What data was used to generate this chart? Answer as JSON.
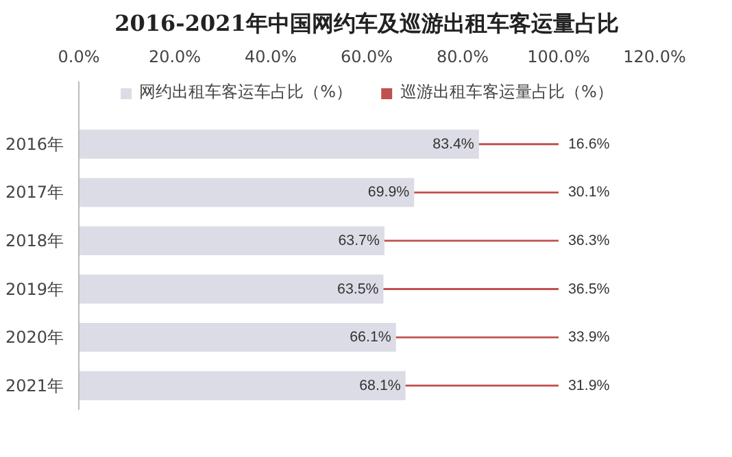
{
  "chart_data": {
    "type": "bar",
    "orientation": "horizontal",
    "stacked": true,
    "title": "2016-2021年中国网约车及巡游出租车客运量占比",
    "categories": [
      "2016年",
      "2017年",
      "2018年",
      "2019年",
      "2020年",
      "2021年"
    ],
    "series": [
      {
        "name": "网约出租车客运车占比（%）",
        "color": "#dcdce6",
        "values": [
          83.4,
          69.9,
          63.7,
          63.5,
          66.1,
          68.1
        ],
        "value_labels": [
          "83.4%",
          "69.9%",
          "63.7%",
          "63.5%",
          "66.1%",
          "68.1%"
        ]
      },
      {
        "name": "巡游出租车客运量占比（%）",
        "color": "#c0504d",
        "values": [
          16.6,
          30.1,
          36.3,
          36.5,
          33.9,
          31.9
        ],
        "value_labels": [
          "16.6%",
          "30.1%",
          "36.3%",
          "36.5%",
          "33.9%",
          "31.9%"
        ]
      }
    ],
    "xlim": [
      0,
      120
    ],
    "xticks": [
      {
        "value": 0,
        "label": "0.0%"
      },
      {
        "value": 20,
        "label": "20.0%"
      },
      {
        "value": 40,
        "label": "40.0%"
      },
      {
        "value": 60,
        "label": "60.0%"
      },
      {
        "value": 80,
        "label": "80.0%"
      },
      {
        "value": 100,
        "label": "100.0%"
      },
      {
        "value": 120,
        "label": "120.0%"
      }
    ],
    "legend": "top",
    "grid": false
  }
}
